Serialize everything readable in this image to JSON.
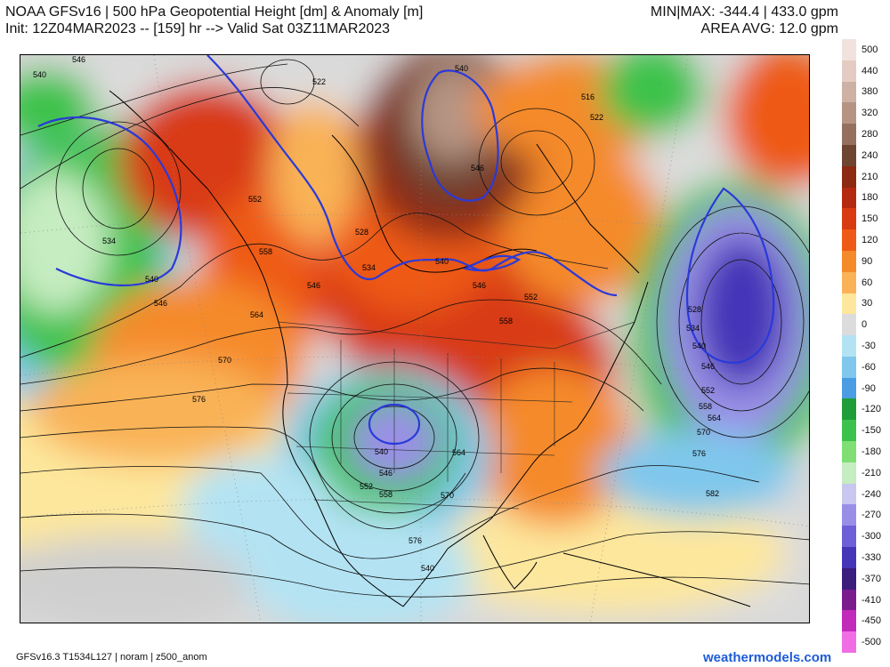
{
  "header": {
    "title_line1": "NOAA GFSv16 | 500 hPa Geopotential Height [dm] & Anomaly [m]",
    "title_line2": "Init: 12Z04MAR2023 -- [159] hr --> Valid Sat 03Z11MAR2023",
    "stats_line1": "MIN|MAX: -344.4 | 433.0 gpm",
    "stats_line2": "AREA AVG: 12.0 gpm"
  },
  "colorbar": {
    "levels": [
      {
        "label": "500",
        "color": "#f2e2de"
      },
      {
        "label": "440",
        "color": "#e4ccc4"
      },
      {
        "label": "380",
        "color": "#cdb1a4"
      },
      {
        "label": "320",
        "color": "#b59484"
      },
      {
        "label": "280",
        "color": "#96705e"
      },
      {
        "label": "240",
        "color": "#6e4530"
      },
      {
        "label": "210",
        "color": "#8c2a12"
      },
      {
        "label": "180",
        "color": "#b42a10"
      },
      {
        "label": "150",
        "color": "#d83a12"
      },
      {
        "label": "120",
        "color": "#ee5a16"
      },
      {
        "label": "90",
        "color": "#f58a2a"
      },
      {
        "label": "60",
        "color": "#f9b257"
      },
      {
        "label": "30",
        "color": "#fde79c"
      },
      {
        "label": "0",
        "color": "#dcdcdc"
      },
      {
        "label": "-30",
        "color": "#b3e3f3"
      },
      {
        "label": "-60",
        "color": "#7fc7ec"
      },
      {
        "label": "-90",
        "color": "#4a9ce3"
      },
      {
        "label": "-120",
        "color": "#1d9e3a"
      },
      {
        "label": "-150",
        "color": "#3cc24c"
      },
      {
        "label": "-180",
        "color": "#7fdf75"
      },
      {
        "label": "-210",
        "color": "#c6ecc1"
      },
      {
        "label": "-240",
        "color": "#c9c6ef"
      },
      {
        "label": "-270",
        "color": "#9a8fe6"
      },
      {
        "label": "-300",
        "color": "#6d5fd6"
      },
      {
        "label": "-330",
        "color": "#4535b8"
      },
      {
        "label": "-370",
        "color": "#3a1d7c"
      },
      {
        "label": "-410",
        "color": "#7a1c8e"
      },
      {
        "label": "-450",
        "color": "#c22aba"
      },
      {
        "label": "-500",
        "color": "#ef6ee3"
      }
    ]
  },
  "contour_labels": [
    {
      "text": "546"
    },
    {
      "text": "540"
    },
    {
      "text": "522"
    },
    {
      "text": "534"
    },
    {
      "text": "540"
    },
    {
      "text": "546"
    },
    {
      "text": "552"
    },
    {
      "text": "558"
    },
    {
      "text": "564"
    },
    {
      "text": "570"
    },
    {
      "text": "576"
    },
    {
      "text": "528"
    },
    {
      "text": "534"
    },
    {
      "text": "546"
    },
    {
      "text": "540"
    },
    {
      "text": "552"
    },
    {
      "text": "558"
    },
    {
      "text": "540"
    },
    {
      "text": "546"
    },
    {
      "text": "516"
    },
    {
      "text": "522"
    },
    {
      "text": "528"
    },
    {
      "text": "534"
    },
    {
      "text": "540"
    },
    {
      "text": "546"
    },
    {
      "text": "552"
    },
    {
      "text": "558"
    },
    {
      "text": "564"
    },
    {
      "text": "570"
    },
    {
      "text": "576"
    },
    {
      "text": "582"
    },
    {
      "text": "540"
    },
    {
      "text": "546"
    },
    {
      "text": "552"
    },
    {
      "text": "558"
    },
    {
      "text": "564"
    },
    {
      "text": "570"
    },
    {
      "text": "576"
    },
    {
      "text": "540"
    },
    {
      "text": "546"
    }
  ],
  "footer": {
    "model_info": "GFSv16.3 T1534L127 | noram | z500_anom",
    "brand": "weathermodels.com"
  }
}
